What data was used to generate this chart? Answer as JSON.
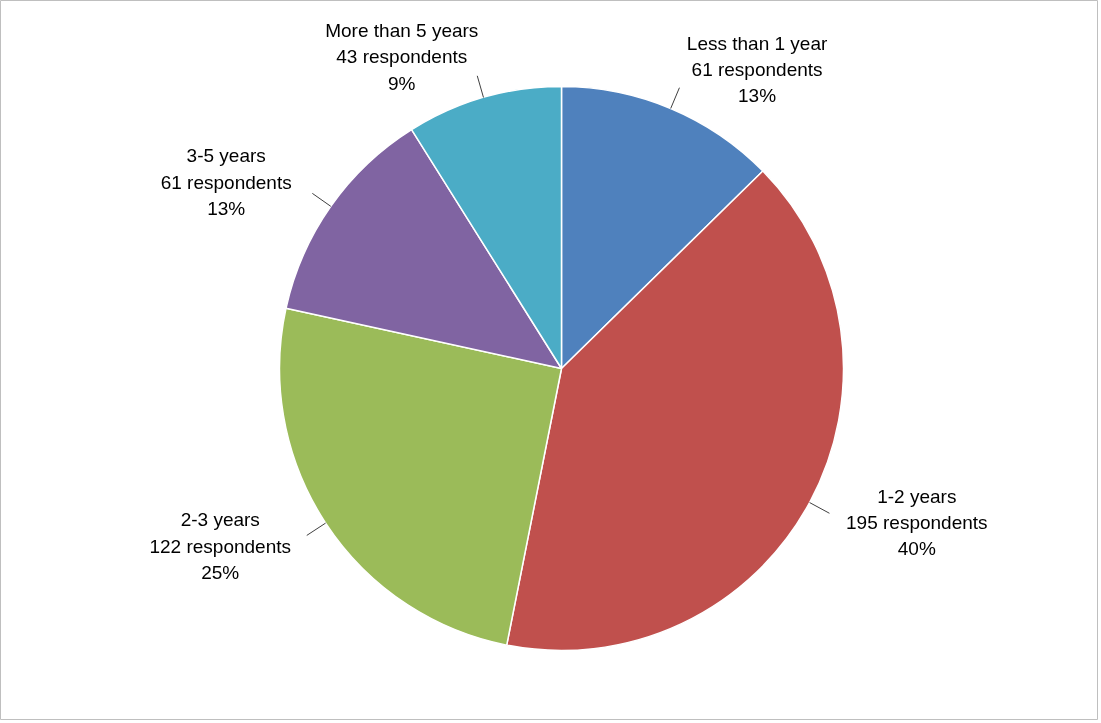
{
  "chart_data": {
    "type": "pie",
    "categories": [
      "Less than 1 year",
      "1-2 years",
      "2-3 years",
      "3-5 years",
      "More than 5 years"
    ],
    "values": [
      61,
      195,
      122,
      61,
      43
    ],
    "value_labels": [
      "61 respondents\n13%",
      "195 respondents\n40%",
      "122 respondents\n25%",
      "61 respondents\n13%",
      "43 respondents\n9%"
    ],
    "colors": [
      "#4f81bd",
      "#c0504d",
      "#9bbb59",
      "#8064a2",
      "#4bacc6"
    ]
  }
}
